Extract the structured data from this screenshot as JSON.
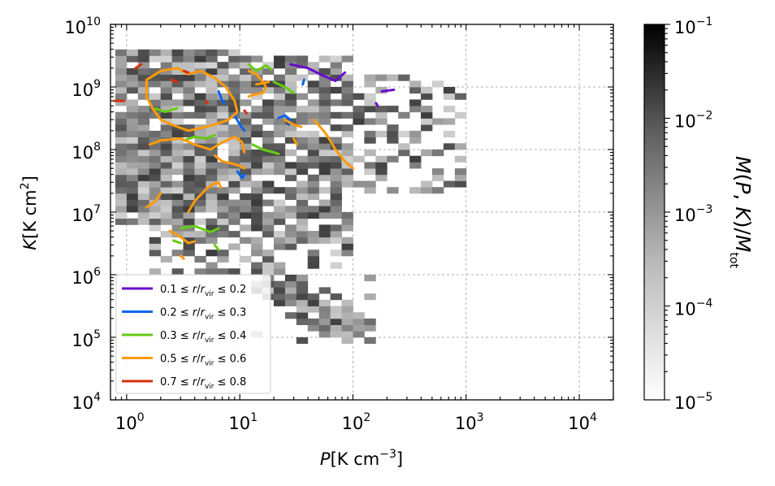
{
  "chart_data": {
    "type": "heatmap",
    "x_axis": {
      "scale": "log",
      "range": [
        0.72,
        20000
      ],
      "ticks": [
        {
          "value": 1,
          "base": "10",
          "exp": "0"
        },
        {
          "value": 10,
          "base": "10",
          "exp": "1"
        },
        {
          "value": 100,
          "base": "10",
          "exp": "2"
        },
        {
          "value": 1000,
          "base": "10",
          "exp": "3"
        },
        {
          "value": 10000,
          "base": "10",
          "exp": "4"
        }
      ],
      "label": {
        "symbol": "P",
        "unit_open": "[K cm",
        "unit_exp": "−3",
        "unit_close": "]"
      }
    },
    "y_axis": {
      "scale": "log",
      "range": [
        10000,
        10000000000
      ],
      "ticks": [
        {
          "value": 10000,
          "base": "10",
          "exp": "4"
        },
        {
          "value": 100000,
          "base": "10",
          "exp": "5"
        },
        {
          "value": 1000000,
          "base": "10",
          "exp": "6"
        },
        {
          "value": 10000000,
          "base": "10",
          "exp": "7"
        },
        {
          "value": 100000000,
          "base": "10",
          "exp": "8"
        },
        {
          "value": 1000000000,
          "base": "10",
          "exp": "9"
        },
        {
          "value": 10000000000,
          "base": "10",
          "exp": "10"
        }
      ],
      "label": {
        "symbol": "K",
        "unit_open": "[K cm",
        "unit_exp": "2",
        "unit_close": "]"
      }
    },
    "colorbar": {
      "scale": "log",
      "range": [
        1e-05,
        0.1
      ],
      "colormap": "greys",
      "ticks": [
        {
          "value": 1e-05,
          "base": "10",
          "exp": "−5"
        },
        {
          "value": 0.0001,
          "base": "10",
          "exp": "−4"
        },
        {
          "value": 0.001,
          "base": "10",
          "exp": "−3"
        },
        {
          "value": 0.01,
          "base": "10",
          "exp": "−2"
        },
        {
          "value": 0.1,
          "base": "10",
          "exp": "−1"
        }
      ],
      "label": "M(P, K)/M_tot"
    },
    "grid": true,
    "legend_position": "lower-left",
    "heatmap_shape": {
      "log_p_range": [
        -0.1,
        1.0,
        2.0
      ],
      "description_bands": [
        {
          "log_p": [
            0.0,
            2.0
          ],
          "log_k": [
            6.8,
            9.6
          ]
        },
        {
          "log_p": [
            1.0,
            3.0
          ],
          "log_k": [
            7.3,
            9.2
          ]
        },
        {
          "log_p": [
            1.1,
            2.1
          ],
          "log_k": [
            4.9,
            6.4
          ]
        }
      ]
    },
    "series": [
      {
        "name": "0.1 ≤ r/r_vir ≤ 0.2",
        "color": "#6a0dcc",
        "segments": [
          [
            [
              28,
              2300000000.0
            ],
            [
              40,
              2000000000.0
            ],
            [
              55,
              1500000000.0
            ],
            [
              70,
              1250000000.0
            ],
            [
              85,
              1700000000.0
            ]
          ],
          [
            [
              180,
              850000000.0
            ],
            [
              230,
              900000000.0
            ]
          ],
          [
            [
              160,
              550000000.0
            ],
            [
              165,
              500000000.0
            ]
          ]
        ]
      },
      {
        "name": "0.2 ≤ r/r_vir ≤ 0.3",
        "color": "#0a64f0",
        "segments": [
          [
            [
              6.5,
              850000000.0
            ],
            [
              7.0,
              600000000.0
            ],
            [
              7.3,
              550000000.0
            ]
          ],
          [
            [
              9,
              350000000.0
            ],
            [
              10,
              250000000.0
            ],
            [
              11,
              200000000.0
            ]
          ],
          [
            [
              22,
              320000000.0
            ],
            [
              25,
              350000000.0
            ],
            [
              28,
              300000000.0
            ],
            [
              27,
              250000000.0
            ]
          ],
          [
            [
              9.5,
              45000000.0
            ],
            [
              10.5,
              35000000.0
            ],
            [
              11,
              40000000.0
            ]
          ],
          [
            [
              36,
              1100000000.0
            ],
            [
              37,
              1300000000.0
            ]
          ]
        ]
      },
      {
        "name": "0.3 ≤ r/r_vir ≤ 0.4",
        "color": "#66cc14",
        "segments": [
          [
            [
              12,
              2300000000.0
            ],
            [
              14,
              1800000000.0
            ],
            [
              17,
              2200000000.0
            ],
            [
              19,
              1900000000.0
            ]
          ],
          [
            [
              20,
              1200000000.0
            ],
            [
              25,
              1000000000.0
            ],
            [
              30,
              800000000.0
            ]
          ],
          [
            [
              3.2,
              140000000.0
            ],
            [
              4.0,
              160000000.0
            ],
            [
              5.0,
              150000000.0
            ],
            [
              6.0,
              170000000.0
            ]
          ],
          [
            [
              13,
              120000000.0
            ],
            [
              16,
              100000000.0
            ],
            [
              20,
              90000000.0
            ],
            [
              22,
              85000000.0
            ]
          ],
          [
            [
              1.8,
              450000000.0
            ],
            [
              2.2,
              400000000.0
            ],
            [
              2.8,
              460000000.0
            ]
          ],
          [
            [
              3.0,
              5500000.0
            ],
            [
              4.0,
              6000000.0
            ],
            [
              5.5,
              4800000.0
            ],
            [
              6.5,
              5500000.0
            ]
          ],
          [
            [
              6.0,
              3000000.0
            ],
            [
              6.5,
              2500000.0
            ]
          ],
          [
            [
              2.6,
              3500000.0
            ],
            [
              3.0,
              3200000.0
            ]
          ]
        ]
      },
      {
        "name": "0.5 ≤ r/r_vir ≤ 0.6",
        "color": "#ff9a0a",
        "segments": [
          [
            [
              1.5,
              1300000000.0
            ],
            [
              2.0,
              1800000000.0
            ],
            [
              2.8,
              2000000000.0
            ],
            [
              3.5,
              1600000000.0
            ],
            [
              4.5,
              1800000000.0
            ],
            [
              6.0,
              1400000000.0
            ],
            [
              7.5,
              1000000000.0
            ],
            [
              9.0,
              600000000.0
            ],
            [
              9.5,
              400000000.0
            ],
            [
              8.0,
              300000000.0
            ],
            [
              6.0,
              250000000.0
            ],
            [
              4.5,
              220000000.0
            ],
            [
              3.5,
              200000000.0
            ],
            [
              2.5,
              250000000.0
            ],
            [
              2.0,
              300000000.0
            ],
            [
              1.7,
              450000000.0
            ],
            [
              1.5,
              700000000.0
            ],
            [
              1.5,
              1300000000.0
            ]
          ],
          [
            [
              12,
              1800000000.0
            ],
            [
              14,
              1600000000.0
            ],
            [
              16,
              1200000000.0
            ],
            [
              17,
              1000000000.0
            ],
            [
              16,
              800000000.0
            ],
            [
              13,
              750000000.0
            ],
            [
              12,
              700000000.0
            ]
          ],
          [
            [
              1.6,
              120000000.0
            ],
            [
              2.0,
              140000000.0
            ],
            [
              3.0,
              150000000.0
            ],
            [
              4.0,
              120000000.0
            ],
            [
              5.5,
              100000000.0
            ],
            [
              7.0,
              130000000.0
            ],
            [
              9.0,
              160000000.0
            ],
            [
              10.5,
              130000000.0
            ],
            [
              11,
              90000000.0
            ]
          ],
          [
            [
              6.0,
              80000000.0
            ],
            [
              7.0,
              65000000.0
            ],
            [
              8.5,
              60000000.0
            ],
            [
              10,
              55000000.0
            ],
            [
              11,
              50000000.0
            ]
          ],
          [
            [
              3.5,
              10000000.0
            ],
            [
              4.0,
              15000000.0
            ],
            [
              5.0,
              23000000.0
            ],
            [
              5.8,
              28000000.0
            ],
            [
              6.5,
              30000000.0
            ],
            [
              6.8,
              25000000.0
            ]
          ],
          [
            [
              2.0,
              20000000.0
            ],
            [
              1.8,
              15000000.0
            ],
            [
              1.5,
              12000000.0
            ]
          ],
          [
            [
              2.4,
              5000000.0
            ],
            [
              3.0,
              4000000.0
            ],
            [
              3.5,
              3200000.0
            ],
            [
              4.0,
              3400000.0
            ]
          ],
          [
            [
              3.0,
              2000000.0
            ],
            [
              3.2,
              1800000.0
            ]
          ],
          [
            [
              45,
              300000000.0
            ],
            [
              55,
              200000000.0
            ],
            [
              60,
              160000000.0
            ],
            [
              70,
              100000000.0
            ],
            [
              85,
              65000000.0
            ],
            [
              100,
              50000000.0
            ]
          ],
          [
            [
              25,
              300000000.0
            ],
            [
              30,
              250000000.0
            ],
            [
              35,
              230000000.0
            ]
          ],
          [
            [
              30,
              150000000.0
            ],
            [
              32,
              120000000.0
            ]
          ],
          [
            [
              14,
              1100000000.0
            ],
            [
              18,
              1200000000.0
            ]
          ]
        ]
      },
      {
        "name": "0.7 ≤ r/r_vir ≤ 0.8",
        "color": "#d43010",
        "segments": [
          [
            [
              1.2,
              2000000000.0
            ],
            [
              1.35,
              2300000000.0
            ]
          ],
          [
            [
              0.78,
              600000000.0
            ],
            [
              0.95,
              600000000.0
            ]
          ],
          [
            [
              3.2,
              1800000000.0
            ],
            [
              3.5,
              1700000000.0
            ]
          ],
          [
            [
              2.5,
              1300000000.0
            ],
            [
              2.8,
              1200000000.0
            ]
          ],
          [
            [
              5.0,
              600000000.0
            ],
            [
              5.2,
              550000000.0
            ]
          ],
          [
            [
              11,
              420000000.0
            ],
            [
              11.5,
              380000000.0
            ]
          ]
        ]
      }
    ]
  }
}
